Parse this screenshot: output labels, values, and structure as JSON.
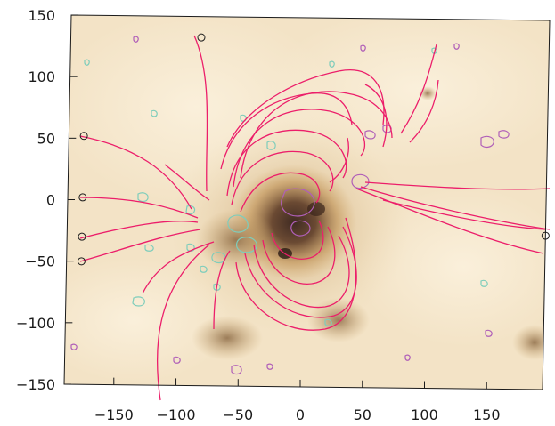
{
  "figure": {
    "colors": {
      "background": "#ffffff",
      "image_light": "#f3e3c6",
      "image_mid": "#d9b47a",
      "image_dark": "#5a3a2a",
      "field_lines": "#ec1e6a",
      "contour_positive": "#7ecdbb",
      "contour_negative": "#b05fb8",
      "frame": "#1a1a1a"
    },
    "axes": {
      "xlim": [
        -190,
        195
      ],
      "ylim": [
        -150,
        150
      ],
      "x_ticks": [
        {
          "value": -150,
          "label": "−150"
        },
        {
          "value": -100,
          "label": "−100"
        },
        {
          "value": -50,
          "label": "−50"
        },
        {
          "value": 0,
          "label": "0"
        },
        {
          "value": 50,
          "label": "50"
        },
        {
          "value": 100,
          "label": "100"
        },
        {
          "value": 150,
          "label": "150"
        }
      ],
      "y_ticks": [
        {
          "value": 150,
          "label": "150"
        },
        {
          "value": 100,
          "label": "100"
        },
        {
          "value": 50,
          "label": "50"
        },
        {
          "value": 0,
          "label": "0"
        },
        {
          "value": -50,
          "label": "−50"
        },
        {
          "value": -100,
          "label": "−100"
        },
        {
          "value": -150,
          "label": "−150"
        }
      ]
    },
    "footpoint_markers": [
      {
        "x": -85,
        "y": 133
      },
      {
        "x": -178,
        "y": 52
      },
      {
        "x": -178,
        "y": 2
      },
      {
        "x": -178,
        "y": -30
      },
      {
        "x": -178,
        "y": -50
      },
      {
        "x": 195,
        "y": -25
      }
    ]
  }
}
